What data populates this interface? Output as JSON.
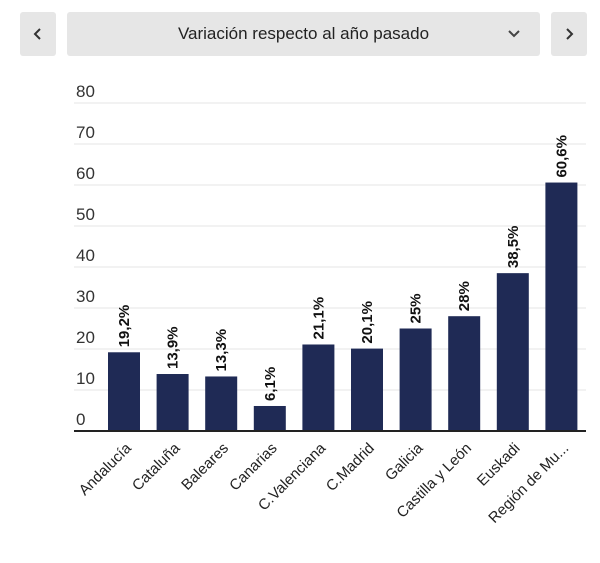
{
  "nav": {
    "prev_icon": "chevron-left-icon",
    "next_icon": "chevron-right-icon",
    "dropdown_icon": "chevron-down-icon",
    "selected_option": "Variación respecto al año pasado"
  },
  "chart_data": {
    "type": "bar",
    "categories": [
      "Andalucía",
      "Cataluña",
      "Baleares",
      "Canarias",
      "C.Valenciana",
      "C.Madrid",
      "Galicia",
      "Castilla y León",
      "Euskadi",
      "Región de Mu..."
    ],
    "values": [
      19.2,
      13.9,
      13.3,
      6.1,
      21.1,
      20.1,
      25,
      28,
      38.5,
      60.6
    ],
    "data_labels": [
      "19,2%",
      "13,9%",
      "13,3%",
      "6,1%",
      "21,1%",
      "20,1%",
      "25%",
      "28%",
      "38,5%",
      "60,6%"
    ],
    "yticks": [
      "0",
      "10",
      "20",
      "30",
      "40",
      "50",
      "60",
      "70",
      "80"
    ],
    "ylim": [
      0,
      80
    ],
    "grid": true,
    "legend": false,
    "bar_color": "#1f2a55"
  }
}
